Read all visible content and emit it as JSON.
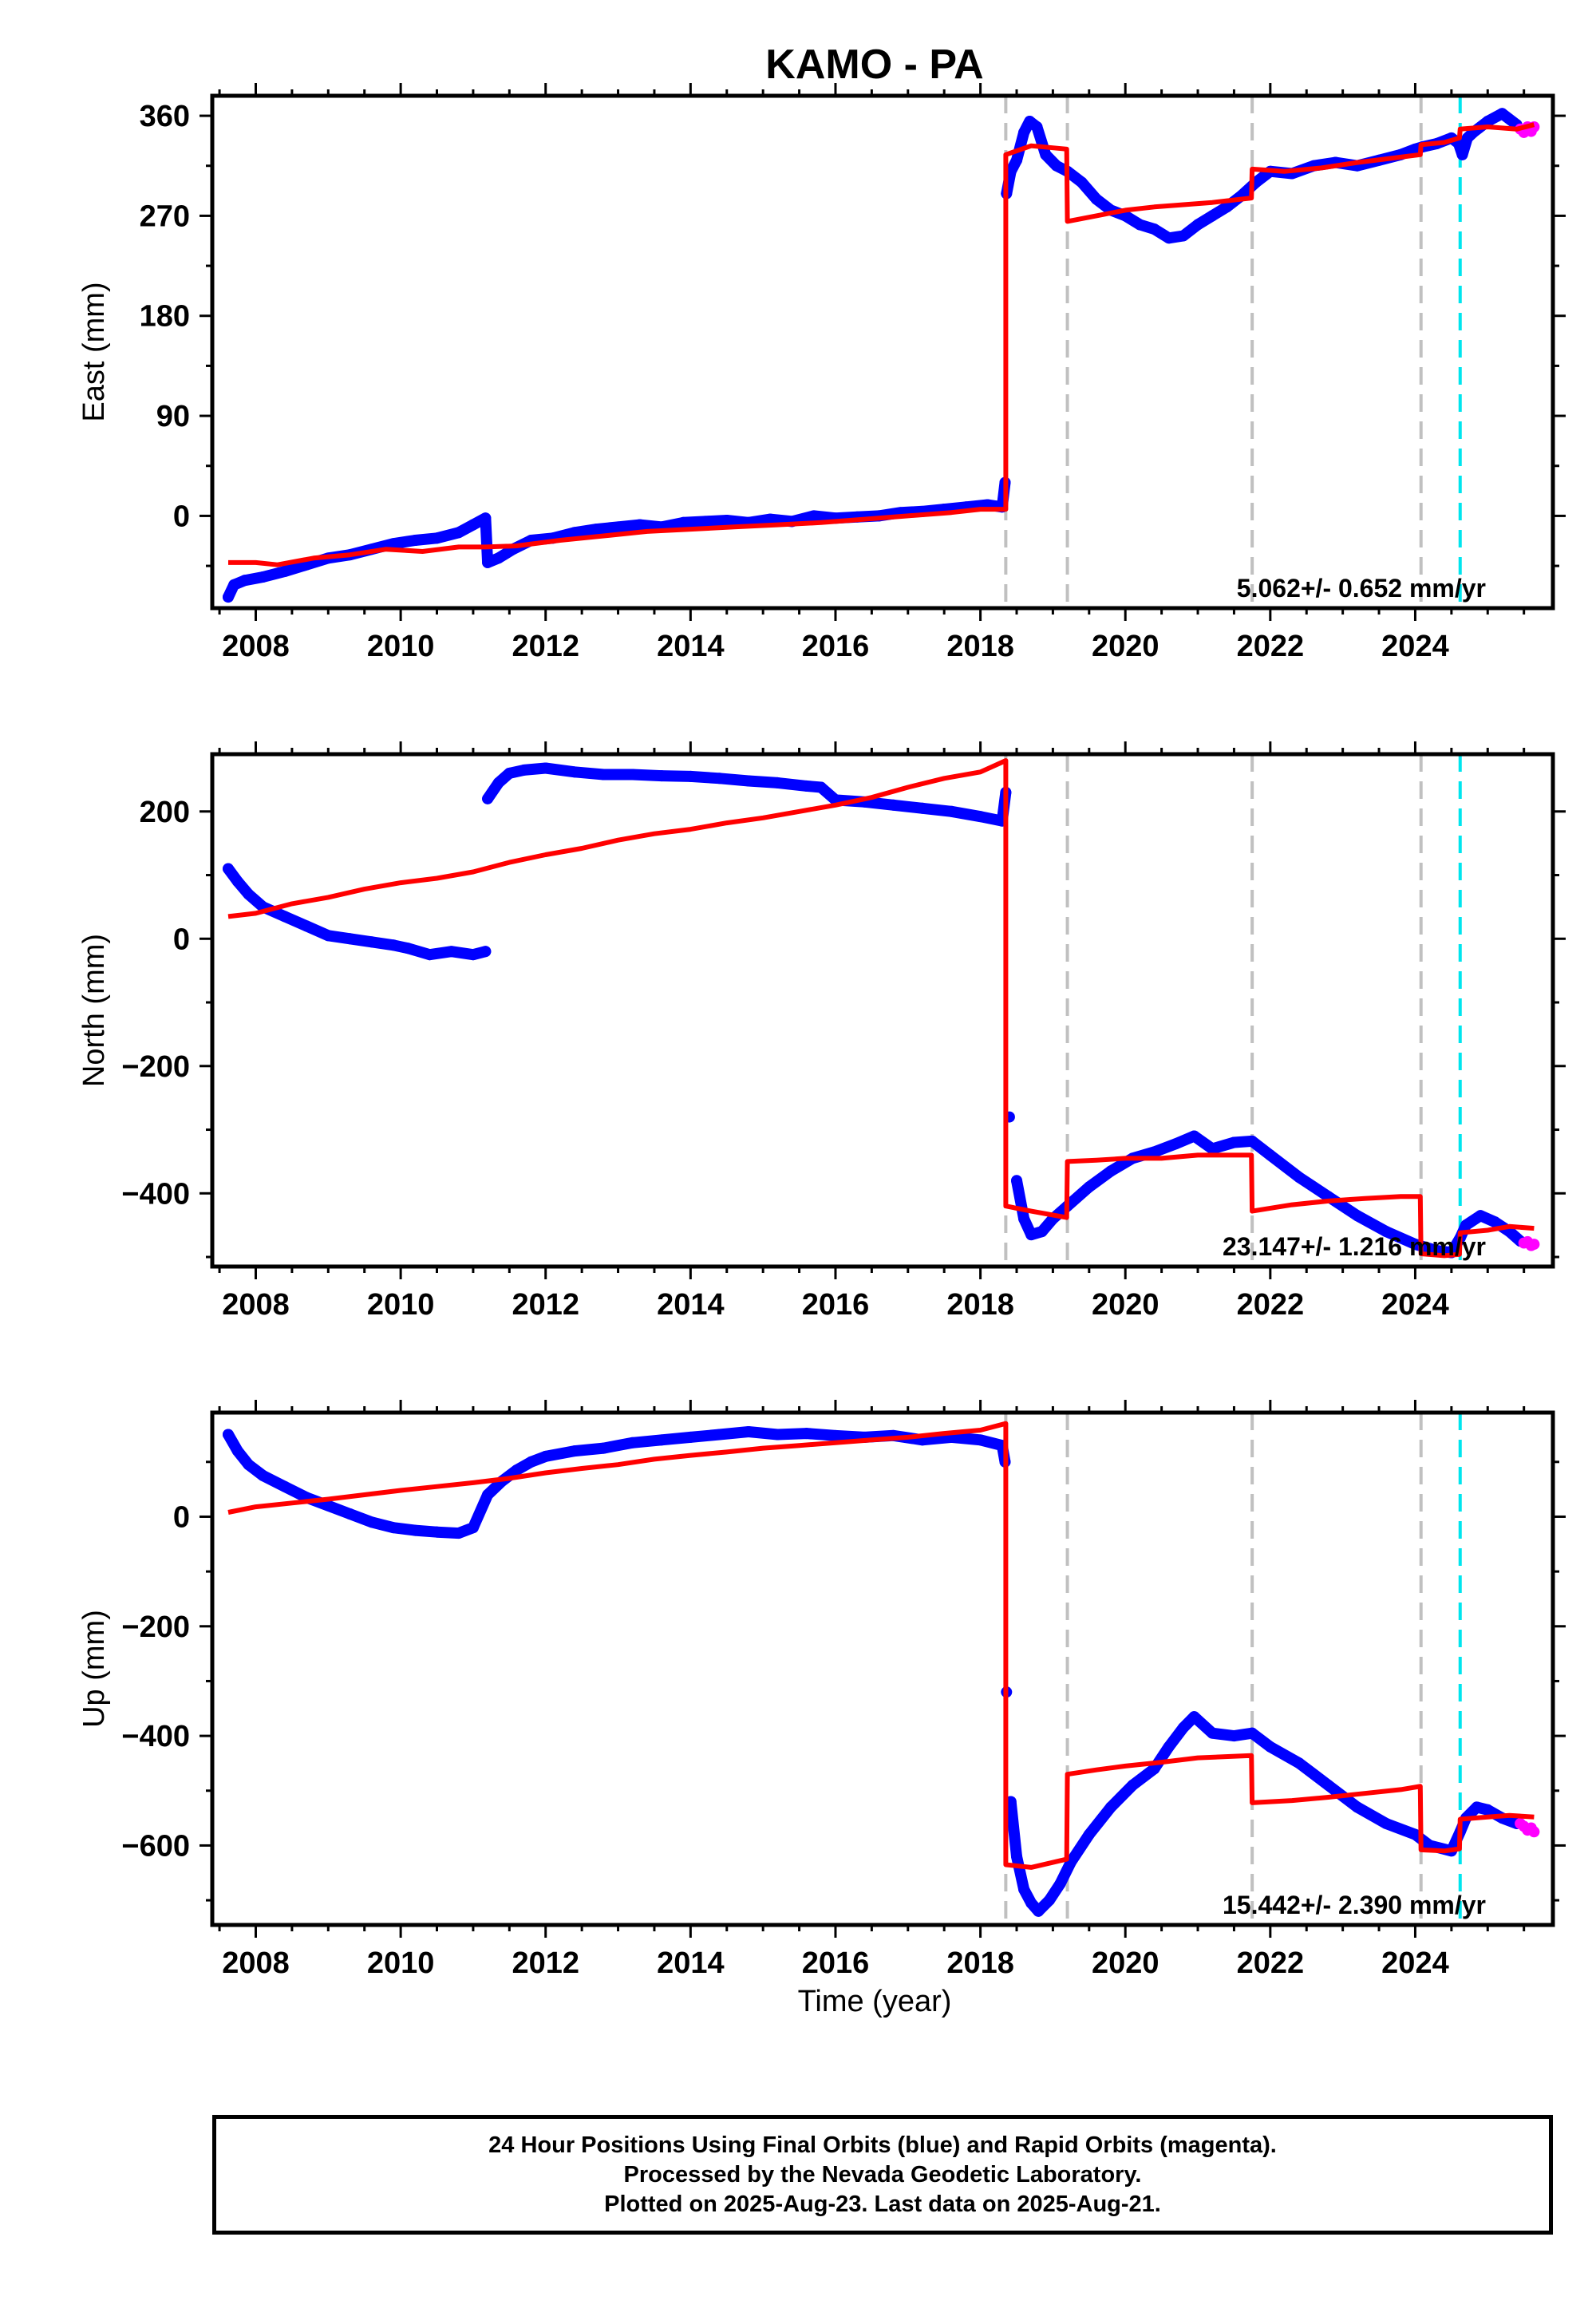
{
  "figure": {
    "title": "KAMO - PA",
    "xlabel": "Time (year)"
  },
  "footer": {
    "lines": [
      "24 Hour Positions Using Final Orbits (blue) and Rapid Orbits (magenta).",
      "Processed by the Nevada Geodetic Laboratory.",
      "Plotted on 2025-Aug-23. Last data on 2025-Aug-21."
    ]
  },
  "colors": {
    "final_orbits": "#0000ff",
    "rapid_orbits": "#ff00ff",
    "model_fit": "#ff0000",
    "offset_line": "#c0c0c0",
    "offset_line_special": "#00e5ee"
  },
  "chart_data": [
    {
      "type": "scatter",
      "panel": "east",
      "ylabel": "East (mm)",
      "xlim": [
        2007.4,
        2025.9
      ],
      "ylim": [
        -83,
        378
      ],
      "x_ticks": [
        2008,
        2010,
        2012,
        2014,
        2016,
        2018,
        2020,
        2022,
        2024
      ],
      "x_tick_labels": [
        "2008",
        "2010",
        "2012",
        "2014",
        "2016",
        "2018",
        "2020",
        "2022",
        "2024"
      ],
      "y_ticks": [
        0,
        90,
        180,
        270,
        360
      ],
      "y_tick_labels": [
        "0",
        "90",
        "180",
        "270",
        "360"
      ],
      "grid": false,
      "rate_annotation": "5.062+/- 0.652 mm/yr",
      "offset_lines_gray": [
        2018.35,
        2019.2,
        2021.75,
        2024.08
      ],
      "offset_lines_cyan": [
        2024.62
      ],
      "series": [
        {
          "role": "final",
          "x": [
            2007.62,
            2007.7,
            2007.85,
            2008.1,
            2008.4,
            2008.7,
            2009.0,
            2009.3,
            2009.6,
            2009.9,
            2010.2,
            2010.5,
            2010.8,
            2011.0,
            2011.17,
            2011.2,
            2011.35,
            2011.55,
            2011.8,
            2012.1,
            2012.4,
            2012.7,
            2013.0,
            2013.3,
            2013.6,
            2013.9,
            2014.2,
            2014.5,
            2014.8,
            2015.1,
            2015.4,
            2015.7,
            2016.0,
            2016.3,
            2016.6,
            2016.9,
            2017.2,
            2017.5,
            2017.8,
            2018.1,
            2018.3,
            2018.34,
            2018.36,
            2018.42,
            2018.5,
            2018.6,
            2018.68,
            2018.78,
            2018.9,
            2019.05,
            2019.2,
            2019.4,
            2019.6,
            2019.8,
            2020.0,
            2020.2,
            2020.4,
            2020.6,
            2020.8,
            2021.0,
            2021.2,
            2021.4,
            2021.6,
            2021.8,
            2022.0,
            2022.3,
            2022.6,
            2022.9,
            2023.2,
            2023.5,
            2023.8,
            2024.0,
            2024.1,
            2024.3,
            2024.5,
            2024.6,
            2024.65,
            2024.72,
            2024.8,
            2025.0,
            2025.2,
            2025.4
          ],
          "y": [
            -73,
            -62,
            -58,
            -55,
            -50,
            -44,
            -38,
            -35,
            -30,
            -25,
            -22,
            -20,
            -15,
            -8,
            -2,
            -42,
            -38,
            -30,
            -22,
            -20,
            -15,
            -12,
            -10,
            -8,
            -10,
            -6,
            -5,
            -4,
            -6,
            -3,
            -5,
            0,
            -2,
            -1,
            0,
            3,
            4,
            6,
            8,
            10,
            8,
            30,
            290,
            310,
            320,
            345,
            355,
            350,
            325,
            315,
            310,
            300,
            285,
            275,
            270,
            262,
            258,
            250,
            252,
            262,
            270,
            278,
            288,
            300,
            310,
            308,
            315,
            318,
            315,
            320,
            325,
            330,
            332,
            335,
            340,
            335,
            325,
            340,
            345,
            355,
            362,
            352
          ]
        },
        {
          "role": "rapid",
          "x": [
            2025.45,
            2025.5,
            2025.55,
            2025.6,
            2025.64
          ],
          "y": [
            348,
            345,
            350,
            346,
            350
          ]
        },
        {
          "role": "model",
          "x": [
            2007.62,
            2008.0,
            2008.3,
            2008.8,
            2009.3,
            2009.8,
            2010.3,
            2010.8,
            2011.17,
            2011.6,
            2012.2,
            2012.8,
            2013.4,
            2014.0,
            2014.6,
            2015.2,
            2015.8,
            2016.4,
            2017.0,
            2017.6,
            2018.0,
            2018.35,
            2018.35,
            2018.7,
            2019.19,
            2019.2,
            2019.6,
            2020.0,
            2020.4,
            2020.8,
            2021.2,
            2021.74,
            2021.75,
            2022.2,
            2022.7,
            2023.2,
            2023.7,
            2024.07,
            2024.08,
            2024.4,
            2024.61,
            2024.62,
            2025.0,
            2025.4,
            2025.64
          ],
          "y": [
            -42,
            -42,
            -44,
            -38,
            -35,
            -30,
            -32,
            -28,
            -28,
            -27,
            -22,
            -18,
            -14,
            -12,
            -10,
            -8,
            -6,
            -3,
            0,
            3,
            6,
            6,
            325,
            333,
            330,
            265,
            270,
            275,
            278,
            280,
            282,
            286,
            312,
            310,
            313,
            318,
            322,
            325,
            334,
            336,
            340,
            348,
            350,
            348,
            352
          ]
        }
      ]
    },
    {
      "type": "scatter",
      "panel": "north",
      "ylabel": "North (mm)",
      "xlim": [
        2007.4,
        2025.9
      ],
      "ylim": [
        -515,
        290
      ],
      "x_ticks": [
        2008,
        2010,
        2012,
        2014,
        2016,
        2018,
        2020,
        2022,
        2024
      ],
      "x_tick_labels": [
        "2008",
        "2010",
        "2012",
        "2014",
        "2016",
        "2018",
        "2020",
        "2022",
        "2024"
      ],
      "y_ticks": [
        -400,
        -200,
        0,
        200
      ],
      "y_tick_labels": [
        "−400",
        "−200",
        "0",
        "200"
      ],
      "grid": false,
      "rate_annotation": "23.147+/- 1.216 mm/yr",
      "offset_lines_gray": [
        2018.35,
        2019.2,
        2021.75,
        2024.08
      ],
      "offset_lines_cyan": [
        2024.62
      ],
      "series": [
        {
          "role": "final",
          "x": [
            2007.62,
            2007.75,
            2007.9,
            2008.1,
            2008.4,
            2008.7,
            2009.0,
            2009.3,
            2009.6,
            2009.9,
            2010.1,
            2010.4,
            2010.7,
            2011.0,
            2011.17,
            2011.2,
            2011.35,
            2011.5,
            2011.7,
            2012.0,
            2012.4,
            2012.8,
            2013.2,
            2013.6,
            2014.0,
            2014.4,
            2014.8,
            2015.2,
            2015.6,
            2015.8,
            2016.0,
            2016.4,
            2016.8,
            2017.2,
            2017.6,
            2018.0,
            2018.3,
            2018.35,
            2018.4,
            2018.5,
            2018.6,
            2018.7,
            2018.85,
            2019.0,
            2019.2,
            2019.5,
            2019.8,
            2020.1,
            2020.4,
            2020.7,
            2020.95,
            2021.2,
            2021.5,
            2021.75,
            2022.0,
            2022.4,
            2022.8,
            2023.2,
            2023.6,
            2024.0,
            2024.3,
            2024.5,
            2024.62,
            2024.7,
            2024.9,
            2025.1,
            2025.3,
            2025.45
          ],
          "y": [
            110,
            90,
            70,
            50,
            35,
            20,
            5,
            0,
            -5,
            -10,
            -15,
            -25,
            -20,
            -25,
            -20,
            220,
            245,
            260,
            265,
            268,
            262,
            258,
            258,
            256,
            255,
            252,
            248,
            245,
            240,
            238,
            218,
            215,
            210,
            205,
            200,
            192,
            185,
            230,
            -280,
            -380,
            -440,
            -465,
            -460,
            -440,
            -420,
            -390,
            -365,
            -345,
            -335,
            -322,
            -310,
            -330,
            -320,
            -318,
            -340,
            -375,
            -405,
            -435,
            -460,
            -480,
            -490,
            -493,
            -470,
            -450,
            -435,
            -445,
            -460,
            -475
          ]
        },
        {
          "role": "rapid",
          "x": [
            2025.5,
            2025.55,
            2025.6,
            2025.64
          ],
          "y": [
            -478,
            -476,
            -482,
            -480
          ]
        },
        {
          "role": "model",
          "x": [
            2007.62,
            2008.0,
            2008.5,
            2009.0,
            2009.5,
            2010.0,
            2010.5,
            2011.0,
            2011.5,
            2012.0,
            2012.5,
            2013.0,
            2013.5,
            2014.0,
            2014.5,
            2015.0,
            2015.5,
            2016.0,
            2016.5,
            2017.0,
            2017.5,
            2018.0,
            2018.35,
            2018.35,
            2018.7,
            2019.19,
            2019.2,
            2019.6,
            2020.0,
            2020.5,
            2021.0,
            2021.74,
            2021.75,
            2022.3,
            2022.8,
            2023.3,
            2023.8,
            2024.07,
            2024.08,
            2024.4,
            2024.61,
            2024.62,
            2025.0,
            2025.3,
            2025.64
          ],
          "y": [
            35,
            40,
            55,
            65,
            78,
            88,
            95,
            105,
            120,
            132,
            142,
            155,
            165,
            172,
            182,
            190,
            200,
            210,
            222,
            238,
            252,
            262,
            280,
            -420,
            -428,
            -438,
            -350,
            -348,
            -345,
            -345,
            -340,
            -340,
            -428,
            -418,
            -412,
            -408,
            -405,
            -405,
            -495,
            -498,
            -496,
            -462,
            -458,
            -452,
            -455
          ]
        }
      ]
    },
    {
      "type": "scatter",
      "panel": "up",
      "ylabel": "Up (mm)",
      "xlim": [
        2007.4,
        2025.9
      ],
      "ylim": [
        -745,
        190
      ],
      "x_ticks": [
        2008,
        2010,
        2012,
        2014,
        2016,
        2018,
        2020,
        2022,
        2024
      ],
      "x_tick_labels": [
        "2008",
        "2010",
        "2012",
        "2014",
        "2016",
        "2018",
        "2020",
        "2022",
        "2024"
      ],
      "y_ticks": [
        -600,
        -400,
        -200,
        0
      ],
      "y_tick_labels": [
        "−600",
        "−400",
        "−200",
        "0"
      ],
      "grid": false,
      "rate_annotation": "15.442+/- 2.390 mm/yr",
      "offset_lines_gray": [
        2018.35,
        2019.2,
        2021.75,
        2024.08
      ],
      "offset_lines_cyan": [
        2024.62
      ],
      "series": [
        {
          "role": "final",
          "x": [
            2007.62,
            2007.75,
            2007.9,
            2008.1,
            2008.4,
            2008.7,
            2009.0,
            2009.3,
            2009.6,
            2009.9,
            2010.2,
            2010.5,
            2010.8,
            2011.0,
            2011.2,
            2011.4,
            2011.6,
            2011.8,
            2012.0,
            2012.4,
            2012.8,
            2013.2,
            2013.6,
            2014.0,
            2014.4,
            2014.8,
            2015.2,
            2015.6,
            2016.0,
            2016.4,
            2016.8,
            2017.2,
            2017.6,
            2018.0,
            2018.3,
            2018.34,
            2018.36,
            2018.42,
            2018.5,
            2018.6,
            2018.7,
            2018.8,
            2018.95,
            2019.1,
            2019.25,
            2019.5,
            2019.8,
            2020.1,
            2020.4,
            2020.6,
            2020.8,
            2020.95,
            2021.2,
            2021.5,
            2021.75,
            2022.0,
            2022.4,
            2022.8,
            2023.2,
            2023.6,
            2024.0,
            2024.2,
            2024.5,
            2024.62,
            2024.7,
            2024.85,
            2025.0,
            2025.2,
            2025.4
          ],
          "y": [
            150,
            120,
            95,
            75,
            55,
            35,
            20,
            5,
            -10,
            -20,
            -25,
            -28,
            -30,
            -20,
            40,
            65,
            85,
            100,
            110,
            120,
            125,
            135,
            140,
            145,
            150,
            155,
            150,
            152,
            148,
            145,
            148,
            140,
            145,
            140,
            130,
            100,
            -320,
            -520,
            -620,
            -680,
            -705,
            -720,
            -700,
            -670,
            -630,
            -580,
            -530,
            -490,
            -460,
            -420,
            -385,
            -365,
            -395,
            -400,
            -395,
            -420,
            -450,
            -490,
            -530,
            -560,
            -580,
            -600,
            -610,
            -575,
            -550,
            -530,
            -535,
            -550,
            -560
          ]
        },
        {
          "role": "rapid",
          "x": [
            2025.45,
            2025.5,
            2025.55,
            2025.6,
            2025.64
          ],
          "y": [
            -560,
            -565,
            -572,
            -568,
            -575
          ]
        },
        {
          "role": "model",
          "x": [
            2007.62,
            2008.0,
            2008.5,
            2009.0,
            2009.5,
            2010.0,
            2010.5,
            2011.0,
            2011.5,
            2012.0,
            2012.5,
            2013.0,
            2013.5,
            2014.0,
            2014.5,
            2015.0,
            2015.5,
            2016.0,
            2016.5,
            2017.0,
            2017.5,
            2018.0,
            2018.35,
            2018.35,
            2018.7,
            2019.19,
            2019.2,
            2019.6,
            2020.0,
            2020.5,
            2021.0,
            2021.74,
            2021.75,
            2022.3,
            2022.8,
            2023.3,
            2023.8,
            2024.07,
            2024.08,
            2024.4,
            2024.61,
            2024.62,
            2025.0,
            2025.3,
            2025.64
          ],
          "y": [
            8,
            18,
            25,
            32,
            40,
            48,
            55,
            62,
            70,
            80,
            88,
            95,
            105,
            112,
            118,
            125,
            130,
            135,
            140,
            145,
            152,
            158,
            170,
            -635,
            -640,
            -625,
            -470,
            -462,
            -455,
            -448,
            -440,
            -436,
            -522,
            -518,
            -512,
            -505,
            -498,
            -492,
            -608,
            -610,
            -606,
            -552,
            -548,
            -545,
            -548
          ]
        }
      ]
    }
  ]
}
